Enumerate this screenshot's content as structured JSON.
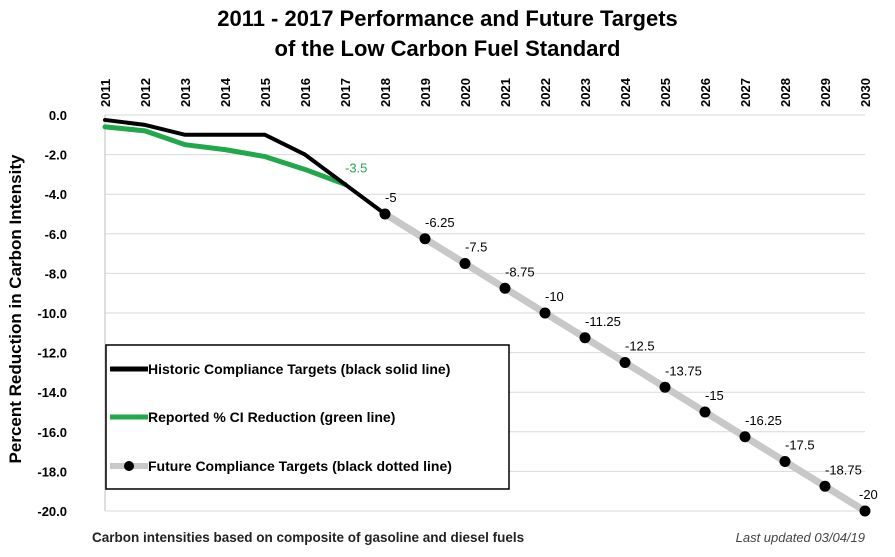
{
  "chart_data": {
    "type": "line",
    "title": "2011 - 2017 Performance and Future Targets",
    "subtitle": "of the Low Carbon Fuel Standard",
    "ylabel": "Percent Reduction in Carbon Intensity",
    "xlabel": "",
    "x": [
      "2011",
      "2012",
      "2013",
      "2014",
      "2015",
      "2016",
      "2017",
      "2018",
      "2019",
      "2020",
      "2021",
      "2022",
      "2023",
      "2024",
      "2025",
      "2026",
      "2027",
      "2028",
      "2029",
      "2030"
    ],
    "ylim": [
      -20,
      0
    ],
    "yticks": [
      "0.0",
      "-2.0",
      "-4.0",
      "-6.0",
      "-8.0",
      "-10.0",
      "-12.0",
      "-14.0",
      "-16.0",
      "-18.0",
      "-20.0"
    ],
    "grid": true,
    "legend_position": "bottom-left",
    "series": [
      {
        "name": "Historic Compliance Targets (black solid line)",
        "color": "#000000",
        "style": "solid",
        "x": [
          "2011",
          "2012",
          "2013",
          "2014",
          "2015",
          "2016",
          "2017",
          "2018"
        ],
        "values": [
          -0.25,
          -0.5,
          -1.0,
          -1.0,
          -1.0,
          -2.0,
          -3.5,
          -5.0
        ]
      },
      {
        "name": "Reported % CI Reduction (green line)",
        "color": "#21a84a",
        "style": "solid",
        "x": [
          "2011",
          "2012",
          "2013",
          "2014",
          "2015",
          "2016",
          "2017"
        ],
        "values": [
          -0.6,
          -0.8,
          -1.5,
          -1.75,
          -2.1,
          -2.75,
          -3.5
        ]
      },
      {
        "name": "Future Compliance Targets (black dotted line)",
        "color": "#000000",
        "line_color": "#c8c8c8",
        "style": "dotted",
        "x": [
          "2018",
          "2019",
          "2020",
          "2021",
          "2022",
          "2023",
          "2024",
          "2025",
          "2026",
          "2027",
          "2028",
          "2029",
          "2030"
        ],
        "values": [
          -5,
          -6.25,
          -7.5,
          -8.75,
          -10,
          -11.25,
          -12.5,
          -13.75,
          -15,
          -16.25,
          -17.5,
          -18.75,
          -20
        ]
      }
    ],
    "annotations": [
      {
        "x": "2017",
        "y": -3.5,
        "text": "-3.5",
        "color": "#21a84a"
      },
      {
        "x": "2018",
        "y": -5,
        "text": "-5"
      },
      {
        "x": "2019",
        "y": -6.25,
        "text": "-6.25"
      },
      {
        "x": "2020",
        "y": -7.5,
        "text": "-7.5"
      },
      {
        "x": "2021",
        "y": -8.75,
        "text": "-8.75"
      },
      {
        "x": "2022",
        "y": -10,
        "text": "-10"
      },
      {
        "x": "2023",
        "y": -11.25,
        "text": "-11.25"
      },
      {
        "x": "2024",
        "y": -12.5,
        "text": "-12.5"
      },
      {
        "x": "2025",
        "y": -13.75,
        "text": "-13.75"
      },
      {
        "x": "2026",
        "y": -15,
        "text": "-15"
      },
      {
        "x": "2027",
        "y": -16.25,
        "text": "-16.25"
      },
      {
        "x": "2028",
        "y": -17.5,
        "text": "-17.5"
      },
      {
        "x": "2029",
        "y": -18.75,
        "text": "-18.75"
      },
      {
        "x": "2030",
        "y": -20,
        "text": "-20"
      }
    ]
  },
  "footnote": "Carbon intensities based on composite of gasoline and diesel fuels",
  "last_updated": "Last updated 03/04/19"
}
